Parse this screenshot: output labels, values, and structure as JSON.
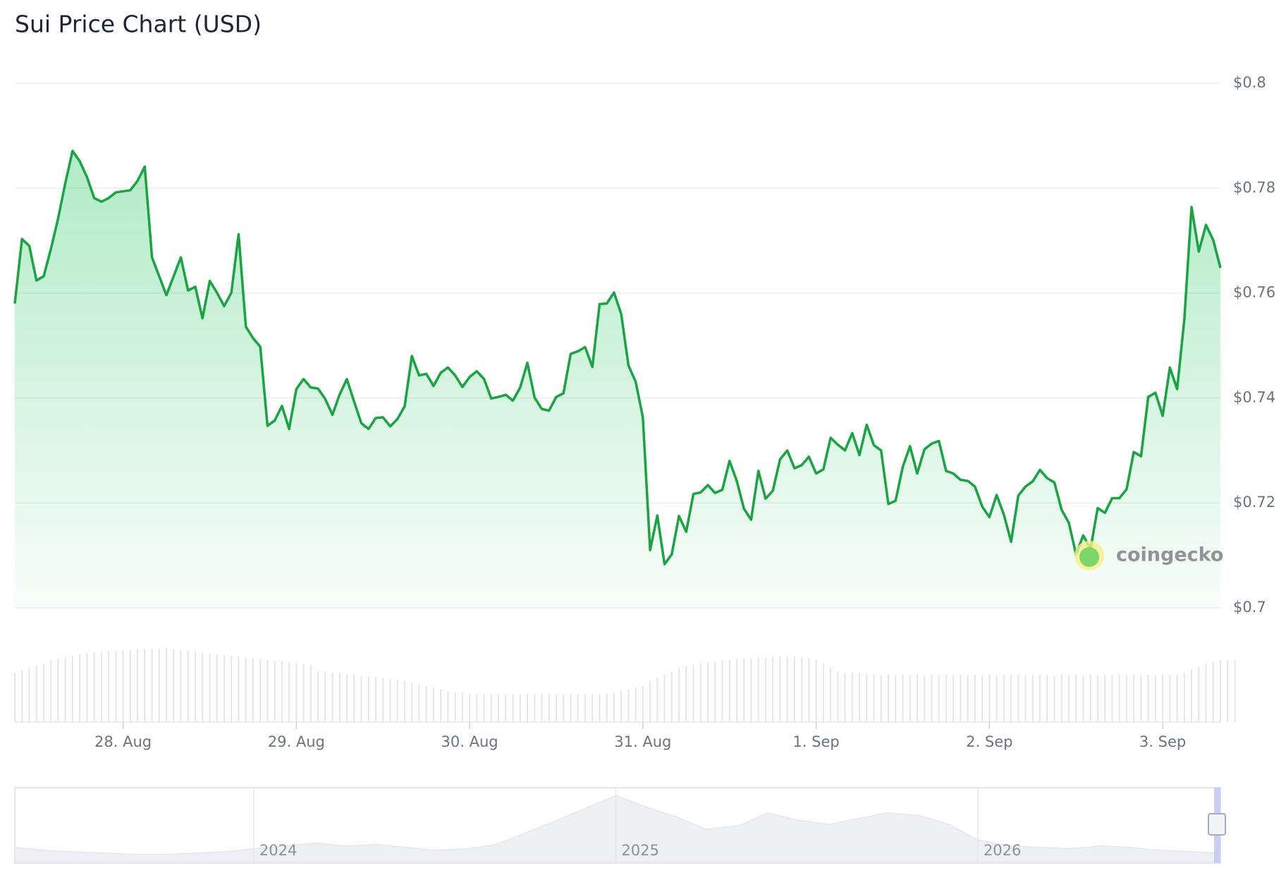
{
  "chart_data": {
    "type": "line",
    "title": "Sui Price Chart (USD)",
    "watermark": "coingecko",
    "color": "#17a441",
    "grid": true,
    "xlim": [
      -15,
      152
    ],
    "xticks": [
      {
        "value": 0,
        "label": "28. Aug"
      },
      {
        "value": 24,
        "label": "29. Aug"
      },
      {
        "value": 48,
        "label": "30. Aug"
      },
      {
        "value": 72,
        "label": "31. Aug"
      },
      {
        "value": 96,
        "label": "1. Sep"
      },
      {
        "value": 120,
        "label": "2. Sep"
      },
      {
        "value": 144,
        "label": "3. Sep"
      }
    ],
    "ylim": [
      0.7,
      0.8
    ],
    "yticks": [
      {
        "value": 0.7,
        "label": "$0.7"
      },
      {
        "value": 0.72,
        "label": "$0.72"
      },
      {
        "value": 0.74,
        "label": "$0.74"
      },
      {
        "value": 0.76,
        "label": "$0.76"
      },
      {
        "value": 0.78,
        "label": "$0.78"
      },
      {
        "value": 0.8,
        "label": "$0.8"
      }
    ],
    "values": [
      0.758,
      0.7703,
      0.769,
      0.7624,
      0.7632,
      0.7684,
      0.7742,
      0.781,
      0.7871,
      0.7851,
      0.7821,
      0.7781,
      0.7774,
      0.7781,
      0.7792,
      0.7794,
      0.7796,
      0.7814,
      0.7841,
      0.7668,
      0.7632,
      0.7596,
      0.7632,
      0.7668,
      0.7605,
      0.7612,
      0.7552,
      0.7623,
      0.7601,
      0.7575,
      0.7601,
      0.7712,
      0.7536,
      0.7514,
      0.7498,
      0.7347,
      0.7357,
      0.7385,
      0.7341,
      0.7417,
      0.7436,
      0.742,
      0.7418,
      0.7398,
      0.7368,
      0.7407,
      0.7436,
      0.7393,
      0.7352,
      0.7341,
      0.7362,
      0.7363,
      0.7346,
      0.736,
      0.7384,
      0.748,
      0.7443,
      0.7446,
      0.7423,
      0.7448,
      0.7458,
      0.7443,
      0.7421,
      0.744,
      0.7451,
      0.7436,
      0.7399,
      0.7402,
      0.7406,
      0.7395,
      0.742,
      0.7467,
      0.7401,
      0.7379,
      0.7376,
      0.7402,
      0.7409,
      0.7484,
      0.7489,
      0.7497,
      0.7459,
      0.7579,
      0.758,
      0.7601,
      0.756,
      0.7462,
      0.7431,
      0.7363,
      0.711,
      0.7176,
      0.7083,
      0.7102,
      0.7175,
      0.7145,
      0.7217,
      0.722,
      0.7234,
      0.7219,
      0.7225,
      0.728,
      0.7242,
      0.7189,
      0.7168,
      0.7261,
      0.7208,
      0.7223,
      0.7283,
      0.73,
      0.7266,
      0.7272,
      0.7288,
      0.7256,
      0.7264,
      0.7324,
      0.7311,
      0.73,
      0.7333,
      0.7291,
      0.7349,
      0.731,
      0.73,
      0.7198,
      0.7204,
      0.7269,
      0.7308,
      0.7256,
      0.7302,
      0.7313,
      0.7318,
      0.7261,
      0.7256,
      0.7244,
      0.7242,
      0.7231,
      0.7193,
      0.7173,
      0.7215,
      0.7178,
      0.7126,
      0.7214,
      0.7231,
      0.7241,
      0.7263,
      0.7247,
      0.7239,
      0.7187,
      0.7162,
      0.7102,
      0.7138,
      0.7112,
      0.719,
      0.7181,
      0.7209,
      0.7209,
      0.7226,
      0.7297,
      0.7289,
      0.7402,
      0.741,
      0.7366,
      0.7458,
      0.7417,
      0.755,
      0.7764,
      0.7679,
      0.773,
      0.7701,
      0.7648
    ],
    "volume": {
      "ylim": [
        0,
        100
      ],
      "color": "#e3e5e8",
      "values": [
        60,
        63,
        66,
        69,
        72,
        75,
        77,
        79,
        81,
        83,
        84,
        85,
        86,
        87,
        87,
        88,
        88,
        89,
        89,
        90,
        90,
        90,
        89,
        88,
        87,
        86,
        85,
        84,
        83,
        82,
        81,
        80,
        79,
        78,
        77,
        76,
        75,
        74,
        73,
        72,
        71,
        70,
        62,
        62,
        60,
        60,
        58,
        58,
        56,
        56,
        55,
        54,
        53,
        52,
        50,
        48,
        46,
        44,
        42,
        40,
        38,
        36,
        36,
        34,
        34,
        34,
        34,
        34,
        34,
        34,
        34,
        34,
        34,
        34,
        34,
        34,
        34,
        34,
        34,
        34,
        34,
        34,
        35,
        36,
        38,
        40,
        42,
        44,
        50,
        54,
        58,
        62,
        66,
        68,
        70,
        72,
        73,
        74,
        75,
        76,
        77,
        78,
        78,
        79,
        79,
        80,
        80,
        80,
        80,
        79,
        78,
        76,
        72,
        66,
        62,
        60,
        60,
        60,
        59,
        58,
        57,
        58,
        57,
        58,
        57,
        58,
        57,
        58,
        57,
        58,
        57,
        58,
        57,
        58,
        57,
        58,
        57,
        58,
        57,
        58,
        57,
        58,
        57,
        58,
        57,
        58,
        57,
        58,
        57,
        58,
        57,
        58,
        57,
        58,
        57,
        58,
        57,
        58,
        57,
        58,
        57,
        58,
        60,
        64,
        68,
        72,
        74,
        76,
        76,
        76
      ]
    },
    "navigator": {
      "xlim": [
        2023.34,
        2026.67
      ],
      "ylim": [
        0,
        100
      ],
      "xticks": [
        {
          "value": 2024,
          "label": "2024"
        },
        {
          "value": 2025,
          "label": "2025"
        },
        {
          "value": 2026,
          "label": "2026"
        }
      ],
      "x": [
        2023.34,
        2023.42,
        2023.5,
        2023.59,
        2023.67,
        2023.75,
        2023.84,
        2023.92,
        2024.0,
        2024.09,
        2024.17,
        2024.25,
        2024.34,
        2024.42,
        2024.5,
        2024.59,
        2024.67,
        2024.75,
        2024.84,
        2024.92,
        2025.0,
        2025.09,
        2025.17,
        2025.25,
        2025.34,
        2025.42,
        2025.5,
        2025.59,
        2025.67,
        2025.75,
        2025.84,
        2025.92,
        2026.0,
        2026.09,
        2026.17,
        2026.25,
        2026.34,
        2026.42,
        2026.5,
        2026.59,
        2026.67
      ],
      "values": [
        20,
        16,
        14,
        12,
        10,
        10,
        12,
        14,
        18,
        22,
        26,
        22,
        24,
        20,
        16,
        18,
        24,
        40,
        58,
        75,
        92,
        75,
        62,
        45,
        50,
        68,
        58,
        52,
        60,
        68,
        64,
        52,
        30,
        22,
        20,
        18,
        22,
        20,
        16,
        14,
        12
      ]
    }
  }
}
